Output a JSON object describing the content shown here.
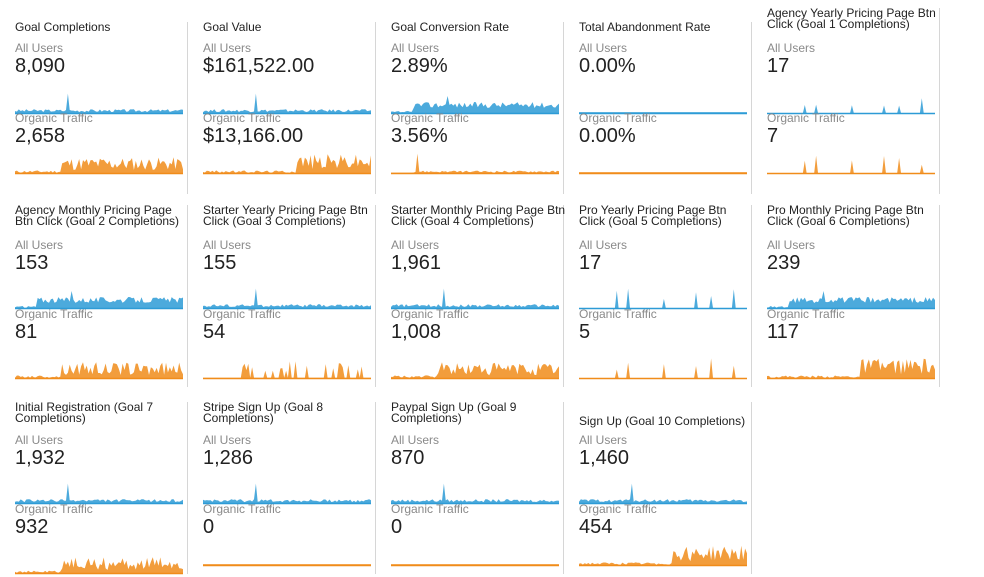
{
  "colors": {
    "all_users": "#2d9bd6",
    "organic": "#f08c1a"
  },
  "segments": {
    "all_users": "All Users",
    "organic": "Organic Traffic"
  },
  "cards": [
    {
      "title": "Goal Completions",
      "all_value": "8,090",
      "organic_value": "2,658",
      "all_spark": "low_one",
      "org_spark": "busy"
    },
    {
      "title": "Goal Value",
      "all_value": "$161,522.00",
      "organic_value": "$13,166.00",
      "all_spark": "low_one",
      "org_spark": "busy_right"
    },
    {
      "title": "Goal Conversion Rate",
      "all_value": "2.89%",
      "organic_value": "3.56%",
      "all_spark": "mid",
      "org_spark": "drop"
    },
    {
      "title": "Total Abandonment Rate",
      "all_value": "0.00%",
      "organic_value": "0.00%",
      "all_spark": "flat",
      "org_spark": "flat"
    },
    {
      "title": "Agency Yearly Pricing Page Btn Click (Goal 1 Completions)",
      "all_value": "17",
      "organic_value": "7",
      "all_spark": "sparse",
      "org_spark": "sparse"
    },
    {
      "title": "Agency Monthly Pricing Page Btn Click (Goal 2 Completions)",
      "all_value": "153",
      "organic_value": "81",
      "all_spark": "mid",
      "org_spark": "busy"
    },
    {
      "title": "Starter Yearly Pricing Page Btn Click (Goal 3 Completions)",
      "all_value": "155",
      "organic_value": "54",
      "all_spark": "low_one",
      "org_spark": "blocks"
    },
    {
      "title": "Starter Monthly Pricing Page Btn Click (Goal 4 Completions)",
      "all_value": "1,961",
      "organic_value": "1,008",
      "all_spark": "low_one",
      "org_spark": "busy"
    },
    {
      "title": "Pro Yearly Pricing Page Btn Click (Goal 5 Completions)",
      "all_value": "17",
      "organic_value": "5",
      "all_spark": "sparse",
      "org_spark": "sparse"
    },
    {
      "title": "Pro Monthly Pricing Page Btn Click (Goal 6 Completions)",
      "all_value": "239",
      "organic_value": "117",
      "all_spark": "mid",
      "org_spark": "busy_right"
    },
    {
      "title": "Initial Registration (Goal 7 Completions)",
      "all_value": "1,932",
      "organic_value": "932",
      "all_spark": "low_one",
      "org_spark": "busy"
    },
    {
      "title": "Stripe Sign Up (Goal 8 Completions)",
      "all_value": "1,286",
      "organic_value": "0",
      "all_spark": "low_one",
      "org_spark": "flat"
    },
    {
      "title": "Paypal Sign Up (Goal 9 Completions)",
      "all_value": "870",
      "organic_value": "0",
      "all_spark": "low_one",
      "org_spark": "flat"
    },
    {
      "title": "Sign Up (Goal 10 Completions)",
      "all_value": "1,460",
      "organic_value": "454",
      "all_spark": "low_one",
      "org_spark": "busy_right"
    }
  ]
}
